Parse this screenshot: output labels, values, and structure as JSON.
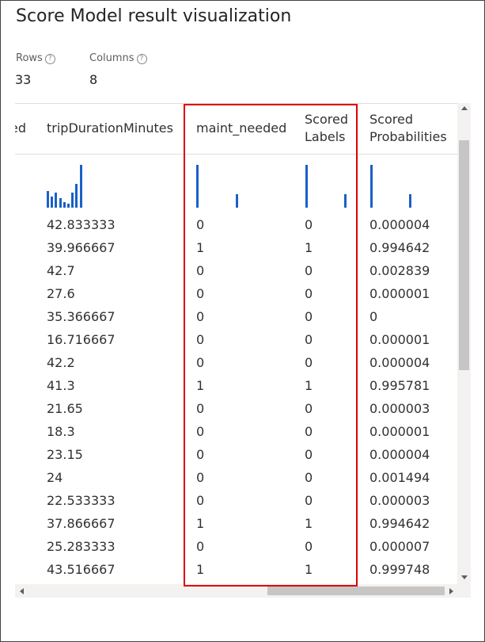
{
  "title": "Score Model result visualization",
  "stats": {
    "rows_label": "Rows",
    "rows_value": "33",
    "columns_label": "Columns",
    "columns_value": "8",
    "help_glyph": "?"
  },
  "colors": {
    "histogram_bar": "#1a60c8",
    "highlight_border": "#e00000"
  },
  "columns": [
    {
      "header": "ed",
      "header_lines": [
        "ed"
      ],
      "histogram": [],
      "cells": []
    },
    {
      "header": "tripDurationMinutes",
      "header_lines": [
        "tripDurationMinutes"
      ],
      "histogram": [
        0.38,
        0.25,
        0.35,
        0.22,
        0.13,
        0.1,
        0.35,
        0.55,
        1.0
      ],
      "cells": [
        "42.833333",
        "39.966667",
        "42.7",
        "27.6",
        "35.366667",
        "16.716667",
        "42.2",
        "41.3",
        "21.65",
        "18.3",
        "23.15",
        "24",
        "22.533333",
        "37.866667",
        "25.283333",
        "43.516667"
      ]
    },
    {
      "header": "maint_needed",
      "header_lines": [
        "maint_needed"
      ],
      "histogram": [
        1.0,
        0.32
      ],
      "cells": [
        "0",
        "1",
        "0",
        "0",
        "0",
        "0",
        "0",
        "1",
        "0",
        "0",
        "0",
        "0",
        "0",
        "1",
        "0",
        "1"
      ]
    },
    {
      "header": "Scored Labels",
      "header_lines": [
        "Scored",
        "Labels"
      ],
      "histogram": [
        1.0,
        0.32
      ],
      "cells": [
        "0",
        "1",
        "0",
        "0",
        "0",
        "0",
        "0",
        "1",
        "0",
        "0",
        "0",
        "0",
        "0",
        "1",
        "0",
        "1"
      ]
    },
    {
      "header": "Scored Probabilities",
      "header_lines": [
        "Scored",
        "Probabilities"
      ],
      "histogram": [
        1.0,
        0.32
      ],
      "cells": [
        "0.000004",
        "0.994642",
        "0.002839",
        "0.000001",
        "0",
        "0.000001",
        "0.000004",
        "0.995781",
        "0.000003",
        "0.000001",
        "0.000004",
        "0.001494",
        "0.000003",
        "0.994642",
        "0.000007",
        "0.999748"
      ]
    }
  ]
}
